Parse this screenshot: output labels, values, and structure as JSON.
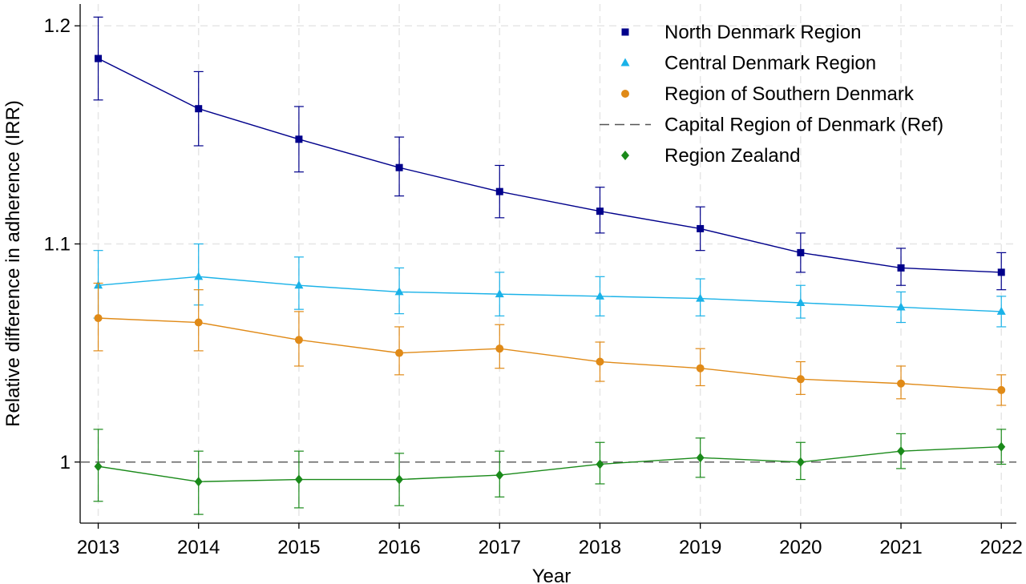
{
  "chart_data": {
    "type": "line",
    "xlabel": "Year",
    "ylabel": "Relative difference in adherence (IRR)",
    "x": [
      2013,
      2014,
      2015,
      2016,
      2017,
      2018,
      2019,
      2020,
      2021,
      2022
    ],
    "x_tick_labels": [
      "2013",
      "2014",
      "2015",
      "2016",
      "2017",
      "2018",
      "2019",
      "2020",
      "2021",
      "2022"
    ],
    "y_ticks": [
      1,
      1.1,
      1.2
    ],
    "y_tick_labels": [
      "1",
      "1.1",
      "1.2"
    ],
    "xlim": [
      2012.82,
      2022.15
    ],
    "ylim": [
      0.972,
      1.21
    ],
    "grid": true,
    "legend_position": "top-right",
    "series": [
      {
        "name": "North Denmark Region",
        "color": "#00008b",
        "marker": "square",
        "values": [
          1.185,
          1.162,
          1.148,
          1.135,
          1.124,
          1.115,
          1.107,
          1.096,
          1.089,
          1.087
        ],
        "ci_low": [
          1.166,
          1.145,
          1.133,
          1.122,
          1.112,
          1.105,
          1.097,
          1.087,
          1.081,
          1.079
        ],
        "ci_high": [
          1.204,
          1.179,
          1.163,
          1.149,
          1.136,
          1.126,
          1.117,
          1.105,
          1.098,
          1.096
        ]
      },
      {
        "name": "Central Denmark Region",
        "color": "#1ab2e8",
        "marker": "triangle",
        "values": [
          1.081,
          1.085,
          1.081,
          1.078,
          1.077,
          1.076,
          1.075,
          1.073,
          1.071,
          1.069
        ],
        "ci_low": [
          1.066,
          1.072,
          1.07,
          1.068,
          1.067,
          1.067,
          1.067,
          1.066,
          1.064,
          1.062
        ],
        "ci_high": [
          1.097,
          1.1,
          1.094,
          1.089,
          1.087,
          1.085,
          1.084,
          1.081,
          1.078,
          1.076
        ]
      },
      {
        "name": "Region of Southern Denmark",
        "color": "#e08a17",
        "marker": "circle",
        "values": [
          1.066,
          1.064,
          1.056,
          1.05,
          1.052,
          1.046,
          1.043,
          1.038,
          1.036,
          1.033
        ],
        "ci_low": [
          1.051,
          1.051,
          1.044,
          1.04,
          1.043,
          1.037,
          1.035,
          1.031,
          1.029,
          1.026
        ],
        "ci_high": [
          1.082,
          1.079,
          1.069,
          1.062,
          1.063,
          1.055,
          1.052,
          1.046,
          1.044,
          1.04
        ]
      },
      {
        "name": "Capital Region of Denmark (Ref)",
        "color": "#555555",
        "marker": "none",
        "line_style": "dashed",
        "values": [
          1,
          1,
          1,
          1,
          1,
          1,
          1,
          1,
          1,
          1
        ]
      },
      {
        "name": "Region Zealand",
        "color": "#1a8a1a",
        "marker": "diamond",
        "values": [
          0.998,
          0.991,
          0.992,
          0.992,
          0.994,
          0.999,
          1.002,
          1.0,
          1.005,
          1.007
        ],
        "ci_low": [
          0.982,
          0.976,
          0.979,
          0.98,
          0.984,
          0.99,
          0.993,
          0.992,
          0.997,
          0.999
        ],
        "ci_high": [
          1.015,
          1.005,
          1.005,
          1.004,
          1.005,
          1.009,
          1.011,
          1.009,
          1.013,
          1.015
        ]
      }
    ]
  }
}
